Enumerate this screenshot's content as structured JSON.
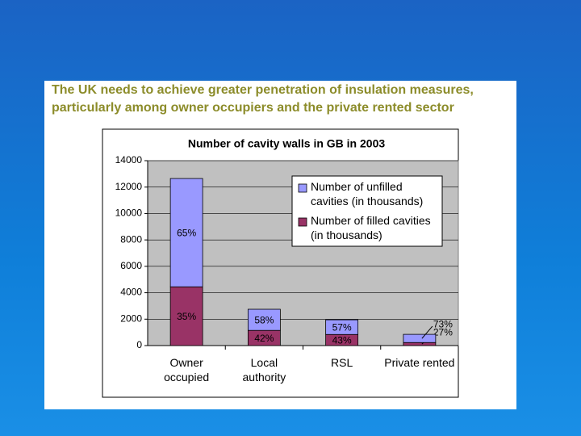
{
  "heading": {
    "line1": "The UK needs to achieve greater penetration of insulation measures,",
    "line2": "particularly among owner occupiers and the private rented sector"
  },
  "chart_data": {
    "type": "stacked_bar",
    "title": "Number of cavity walls in GB in 2003",
    "categories": [
      "Owner occupied",
      "Local authority",
      "RSL",
      "Private rented"
    ],
    "series": [
      {
        "name": "Number of filled cavities (in thousands)",
        "color": "#993366",
        "values": [
          4450,
          1150,
          840,
          230
        ],
        "share_labels": [
          "35%",
          "42%",
          "43%",
          "27%"
        ]
      },
      {
        "name": "Number of unfilled cavities (in thousands)",
        "color": "#9999ff",
        "values": [
          8200,
          1600,
          1110,
          620
        ],
        "share_labels": [
          "65%",
          "58%",
          "57%",
          "73%"
        ]
      }
    ],
    "ylim": [
      0,
      14000
    ],
    "yticks": [
      0,
      2000,
      4000,
      6000,
      8000,
      10000,
      12000,
      14000
    ],
    "grid": true,
    "legend": "top-right"
  }
}
